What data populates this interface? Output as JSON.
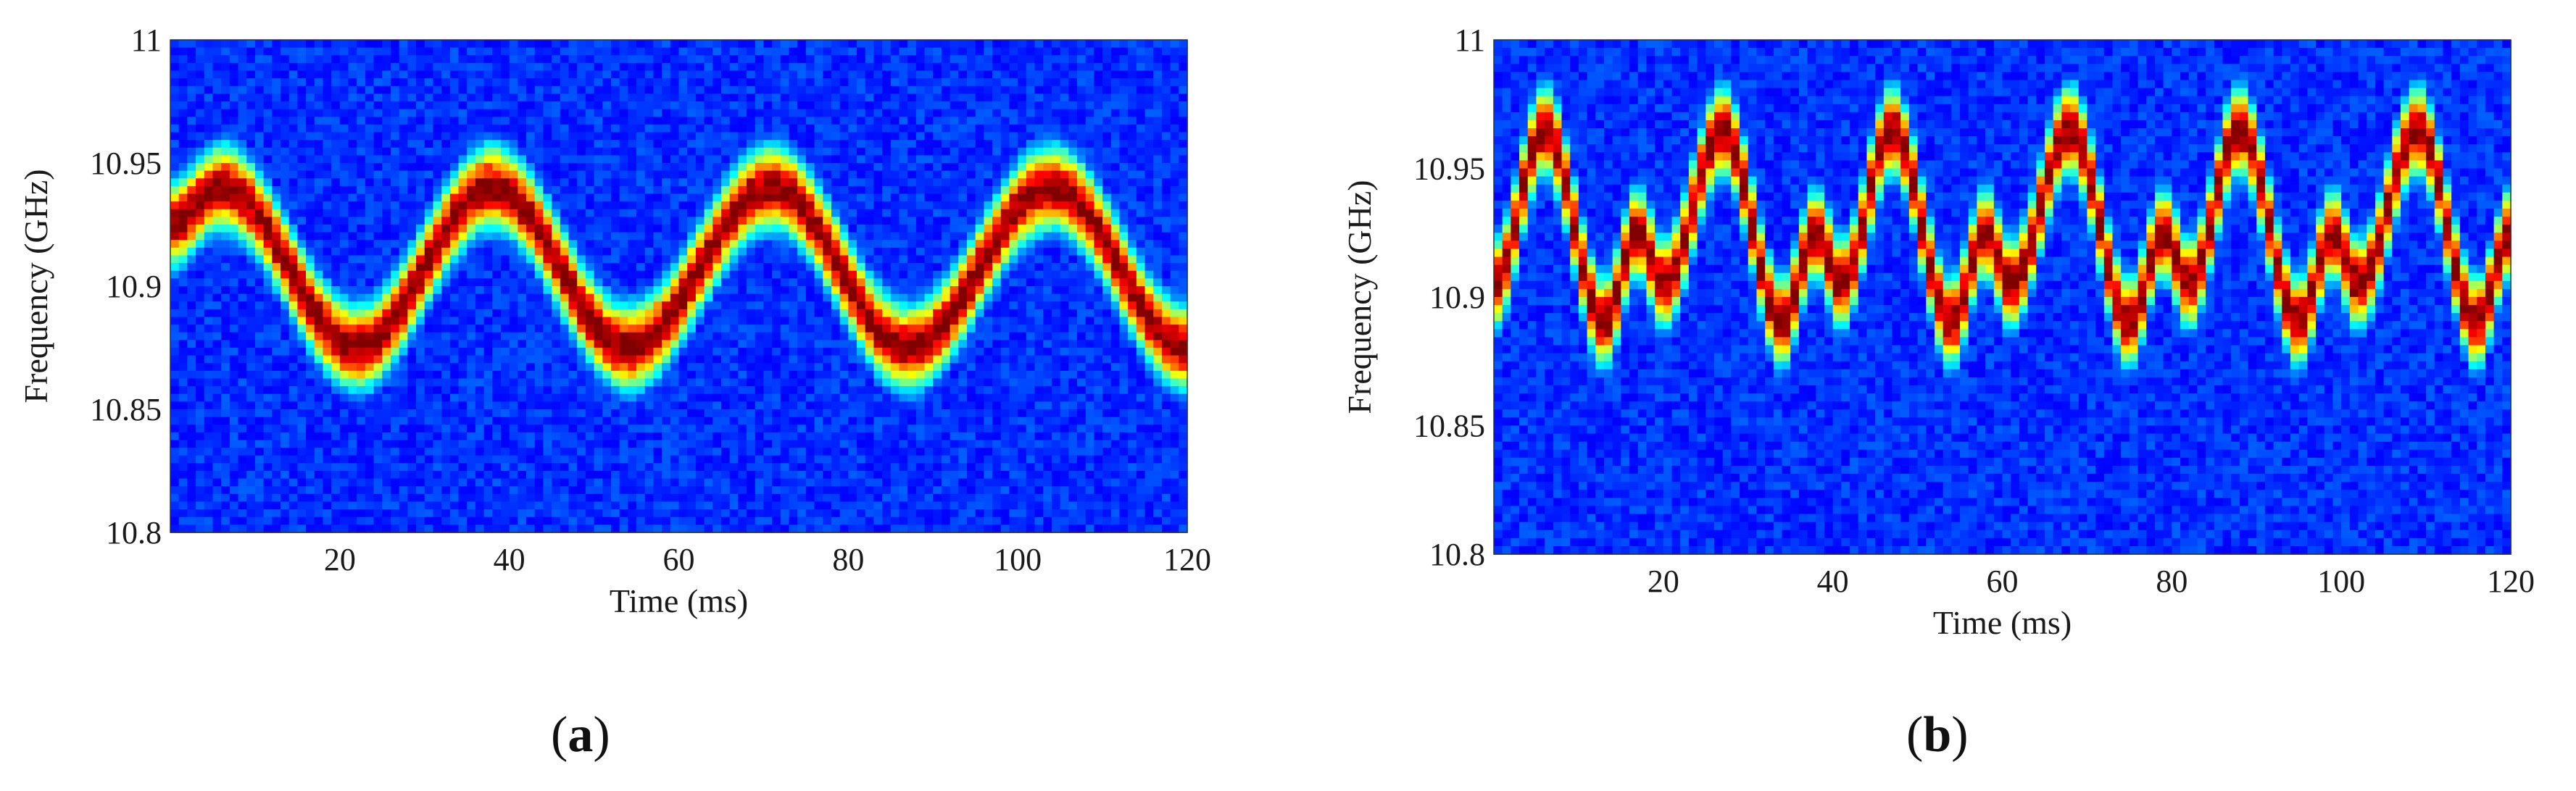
{
  "chart_data": [
    {
      "type": "heatmap",
      "panel_label": "a",
      "xlabel": "Time (ms)",
      "ylabel": "Frequency (GHz)",
      "xlim": [
        0,
        120
      ],
      "ylim": [
        10.8,
        11
      ],
      "xticks": [
        20,
        40,
        60,
        80,
        100,
        120
      ],
      "yticks": [
        10.8,
        10.85,
        10.9,
        10.95,
        11
      ],
      "ytick_labels": [
        "10.8",
        "10.85",
        "10.9",
        "10.95",
        "11"
      ],
      "colormap": "jet",
      "ridge": {
        "description_points": [
          {
            "x": 0,
            "y": 10.925
          },
          {
            "x": 6,
            "y": 10.94
          },
          {
            "x": 22,
            "y": 10.875
          },
          {
            "x": 38,
            "y": 10.94
          },
          {
            "x": 54,
            "y": 10.875
          },
          {
            "x": 71,
            "y": 10.94
          },
          {
            "x": 87,
            "y": 10.875
          },
          {
            "x": 104,
            "y": 10.94
          },
          {
            "x": 120,
            "y": 10.875
          }
        ]
      }
    },
    {
      "type": "heatmap",
      "panel_label": "b",
      "xlabel": "Time (ms)",
      "ylabel": "Frequency (GHz)",
      "xlim": [
        0,
        120
      ],
      "ylim": [
        10.8,
        11
      ],
      "xticks": [
        20,
        40,
        60,
        80,
        100,
        120
      ],
      "yticks": [
        10.8,
        10.85,
        10.9,
        10.95,
        11
      ],
      "ytick_labels": [
        "10.8",
        "10.85",
        "10.9",
        "10.95",
        "11"
      ],
      "colormap": "jet",
      "ridge": {
        "description_points": [
          {
            "x": 0,
            "y": 10.905
          },
          {
            "x": 6,
            "y": 10.965
          },
          {
            "x": 13,
            "y": 10.89
          },
          {
            "x": 17,
            "y": 10.925
          },
          {
            "x": 20,
            "y": 10.905
          },
          {
            "x": 27,
            "y": 10.965
          },
          {
            "x": 34,
            "y": 10.89
          },
          {
            "x": 38,
            "y": 10.925
          },
          {
            "x": 41,
            "y": 10.905
          },
          {
            "x": 47,
            "y": 10.965
          },
          {
            "x": 54,
            "y": 10.89
          },
          {
            "x": 58,
            "y": 10.925
          },
          {
            "x": 61,
            "y": 10.905
          },
          {
            "x": 68,
            "y": 10.965
          },
          {
            "x": 75,
            "y": 10.89
          },
          {
            "x": 79,
            "y": 10.925
          },
          {
            "x": 82,
            "y": 10.905
          },
          {
            "x": 88,
            "y": 10.965
          },
          {
            "x": 95,
            "y": 10.89
          },
          {
            "x": 99,
            "y": 10.925
          },
          {
            "x": 102,
            "y": 10.905
          },
          {
            "x": 109,
            "y": 10.965
          },
          {
            "x": 116,
            "y": 10.89
          },
          {
            "x": 120,
            "y": 10.925
          }
        ]
      }
    }
  ]
}
